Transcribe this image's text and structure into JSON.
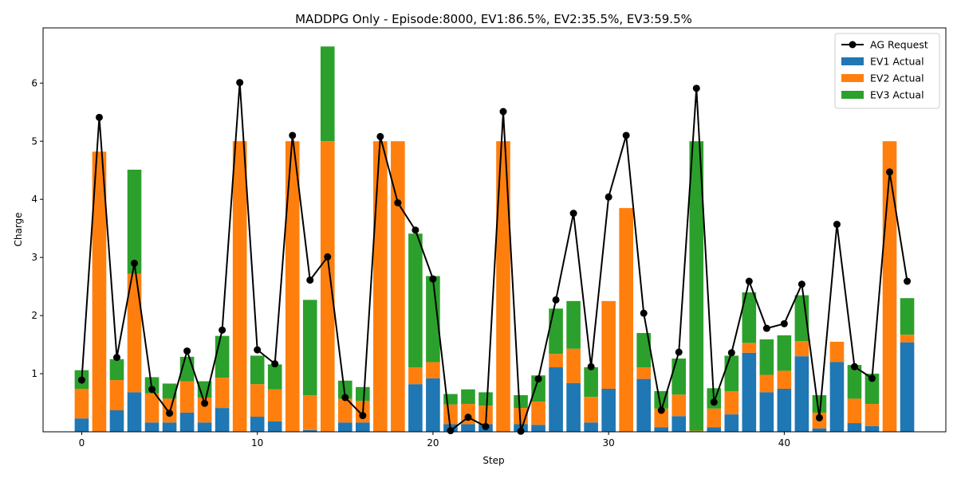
{
  "chart_data": {
    "type": "bar",
    "title": "MADDPG Only - Episode:8000, EV1:86.5%, EV2:35.5%, EV3:59.5%",
    "xlabel": "Step",
    "ylabel": "Charge",
    "xlim": [
      -2.2,
      49.2
    ],
    "ylim": [
      0,
      6.95
    ],
    "x_ticks": [
      0,
      10,
      20,
      30,
      40
    ],
    "y_ticks": [
      1,
      2,
      3,
      4,
      5,
      6
    ],
    "stacked": true,
    "legend_position": "top-right",
    "x": [
      0,
      1,
      2,
      3,
      4,
      5,
      6,
      7,
      8,
      9,
      10,
      11,
      12,
      13,
      14,
      15,
      16,
      17,
      18,
      19,
      20,
      21,
      22,
      23,
      24,
      25,
      26,
      27,
      28,
      29,
      30,
      31,
      32,
      33,
      34,
      35,
      36,
      37,
      38,
      39,
      40,
      41,
      42,
      43,
      44,
      45,
      46,
      47
    ],
    "series": [
      {
        "name": "EV1 Actual",
        "color": "#1f77b4",
        "values": [
          0.23,
          0,
          0.37,
          0.68,
          0.16,
          0.16,
          0.33,
          0.16,
          0.41,
          0,
          0.26,
          0.18,
          0,
          0.03,
          0,
          0.16,
          0.16,
          0,
          0,
          0.82,
          0.92,
          0.13,
          0.13,
          0.13,
          0,
          0.13,
          0.12,
          1.11,
          0.84,
          0.16,
          0.74,
          0,
          0.91,
          0.08,
          0.27,
          0,
          0.08,
          0.3,
          1.36,
          0.68,
          0.74,
          1.3,
          0.06,
          1.2,
          0.15,
          0.1,
          0,
          1.54
        ]
      },
      {
        "name": "EV2 Actual",
        "color": "#ff7f0e",
        "values": [
          0.51,
          4.82,
          0.52,
          2.04,
          0.5,
          0.41,
          0.54,
          0.43,
          0.52,
          5.0,
          0.56,
          0.55,
          5.0,
          0.6,
          5.0,
          0.41,
          0.37,
          5.0,
          5.0,
          0.29,
          0.28,
          0.34,
          0.35,
          0.32,
          5.0,
          0.28,
          0.4,
          0.23,
          0.59,
          0.44,
          1.51,
          3.85,
          0.2,
          0.32,
          0.37,
          0.02,
          0.32,
          0.4,
          0.17,
          0.3,
          0.31,
          0.26,
          0.27,
          0.35,
          0.42,
          0.38,
          5.0,
          0.13
        ]
      },
      {
        "name": "EV3 Actual",
        "color": "#2ca02c",
        "values": [
          0.32,
          0,
          0.36,
          1.79,
          0.28,
          0.26,
          0.42,
          0.28,
          0.72,
          0,
          0.49,
          0.43,
          0,
          1.64,
          1.63,
          0.31,
          0.24,
          0,
          0,
          2.3,
          1.48,
          0.18,
          0.25,
          0.23,
          0,
          0.22,
          0.45,
          0.78,
          0.82,
          0.51,
          0,
          0,
          0.59,
          0.3,
          0.62,
          4.98,
          0.35,
          0.61,
          0.87,
          0.61,
          0.61,
          0.79,
          0.3,
          0,
          0.58,
          0.52,
          0,
          0.63
        ]
      },
      {
        "name": "AG Request",
        "color": "#000000",
        "kind": "line",
        "values": [
          0.89,
          5.41,
          1.28,
          2.9,
          0.73,
          0.32,
          1.39,
          0.49,
          1.75,
          6.01,
          1.41,
          1.17,
          5.1,
          2.61,
          3.01,
          0.59,
          0.28,
          5.08,
          3.94,
          3.47,
          2.63,
          0.02,
          0.25,
          0.09,
          5.51,
          0.01,
          0.91,
          2.27,
          3.76,
          1.12,
          4.04,
          5.1,
          2.04,
          0.37,
          1.37,
          5.91,
          0.51,
          1.36,
          2.59,
          1.78,
          1.86,
          2.54,
          0.24,
          3.57,
          1.12,
          0.92,
          4.47,
          2.59
        ]
      }
    ]
  }
}
